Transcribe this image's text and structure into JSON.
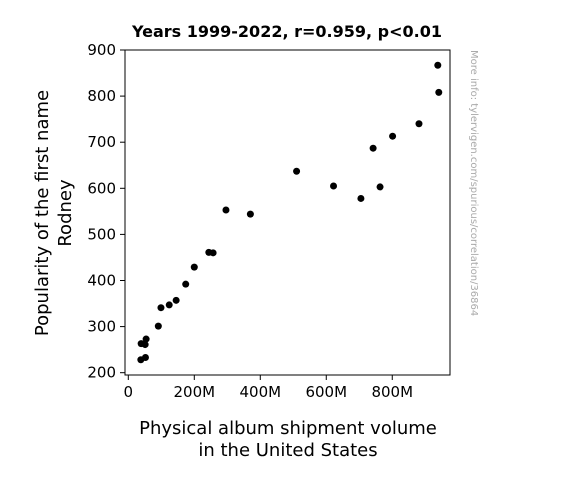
{
  "chart_data": {
    "type": "scatter",
    "title": "Years 1999-2022, r=0.959, p<0.01",
    "xlabel": [
      "Physical album shipment volume",
      "in the United States"
    ],
    "ylabel": [
      "Popularity of the first name",
      "Rodney"
    ],
    "xlim": [
      -10,
      975
    ],
    "ylim": [
      195,
      900
    ],
    "xticks": [
      0,
      200,
      400,
      600,
      800
    ],
    "xtick_labels": [
      "0",
      "200M",
      "400M",
      "600M",
      "800M"
    ],
    "yticks": [
      200,
      300,
      400,
      500,
      600,
      700,
      800,
      900
    ],
    "ytick_labels": [
      "200",
      "300",
      "400",
      "500",
      "600",
      "700",
      "800",
      "900"
    ],
    "grid": false,
    "marker_color": "#000000",
    "watermark": "More info: tylervigen.com/spurious/correlation/36864",
    "points": [
      {
        "x": 938,
        "y": 867
      },
      {
        "x": 941,
        "y": 808
      },
      {
        "x": 881,
        "y": 740
      },
      {
        "x": 801,
        "y": 713
      },
      {
        "x": 742,
        "y": 687
      },
      {
        "x": 510,
        "y": 637
      },
      {
        "x": 622,
        "y": 605
      },
      {
        "x": 763,
        "y": 603
      },
      {
        "x": 705,
        "y": 578
      },
      {
        "x": 296,
        "y": 553
      },
      {
        "x": 370,
        "y": 544
      },
      {
        "x": 244,
        "y": 461
      },
      {
        "x": 257,
        "y": 460
      },
      {
        "x": 200,
        "y": 429
      },
      {
        "x": 174,
        "y": 392
      },
      {
        "x": 145,
        "y": 357
      },
      {
        "x": 124,
        "y": 347
      },
      {
        "x": 99,
        "y": 341
      },
      {
        "x": 91,
        "y": 301
      },
      {
        "x": 54,
        "y": 273
      },
      {
        "x": 39,
        "y": 263
      },
      {
        "x": 51,
        "y": 261
      },
      {
        "x": 52,
        "y": 233
      },
      {
        "x": 38,
        "y": 228
      }
    ]
  }
}
